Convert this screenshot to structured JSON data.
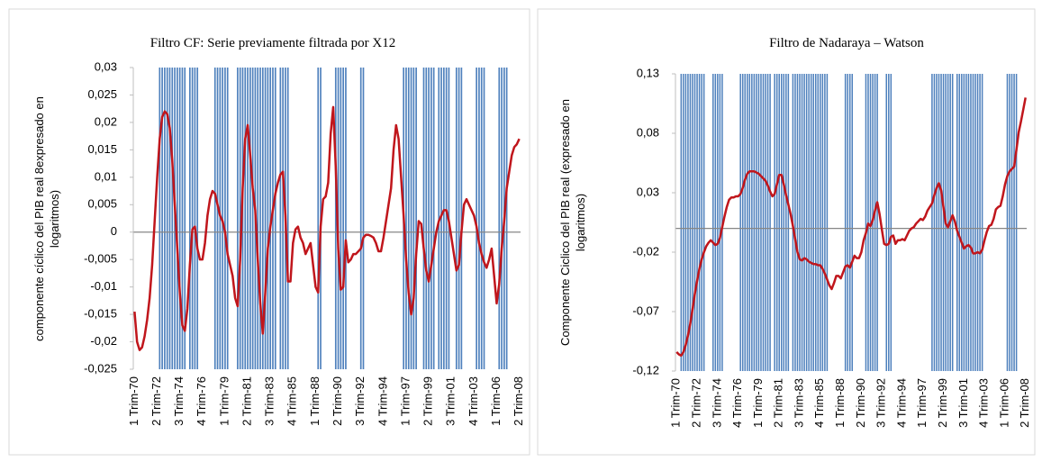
{
  "chart_data": [
    {
      "type": "line",
      "title": "Filtro CF: Serie previamente filtrada por X12",
      "y_label": "componente cíclico del PIB real 8expresado en logaritmos)",
      "categories": [
        "1 Trim-70",
        null,
        null,
        null,
        null,
        null,
        null,
        null,
        null,
        "2 Trim-72",
        null,
        null,
        null,
        null,
        null,
        null,
        null,
        null,
        "3 Trim-74",
        null,
        null,
        null,
        null,
        null,
        null,
        null,
        null,
        "4 Trim-76",
        null,
        null,
        null,
        null,
        null,
        null,
        null,
        null,
        "1 Trim-79",
        null,
        null,
        null,
        null,
        null,
        null,
        null,
        null,
        "2 Trim-81",
        null,
        null,
        null,
        null,
        null,
        null,
        null,
        null,
        "3 Trim-83",
        null,
        null,
        null,
        null,
        null,
        null,
        null,
        null,
        "4 Trim-85",
        null,
        null,
        null,
        null,
        null,
        null,
        null,
        null,
        "1 Trim-88",
        null,
        null,
        null,
        null,
        null,
        null,
        null,
        null,
        "2 Trim-90",
        null,
        null,
        null,
        null,
        null,
        null,
        null,
        null,
        "3 Trim-92",
        null,
        null,
        null,
        null,
        null,
        null,
        null,
        null,
        "4 Trim-94",
        null,
        null,
        null,
        null,
        null,
        null,
        null,
        null,
        "1 Trim-97",
        null,
        null,
        null,
        null,
        null,
        null,
        null,
        null,
        "2 Trim-99",
        null,
        null,
        null,
        null,
        null,
        null,
        null,
        null,
        "3 Trim-01",
        null,
        null,
        null,
        null,
        null,
        null,
        null,
        null,
        "4 Trim-03",
        null,
        null,
        null,
        null,
        null,
        null,
        null,
        null,
        "1 Trim-06",
        null,
        null,
        null,
        null,
        null,
        null,
        null,
        null,
        "2 Trim-08"
      ],
      "ylim": [
        -0.025,
        0.03
      ],
      "yticks": [
        {
          "value": 0.03,
          "label": "0,03"
        },
        {
          "value": 0.025,
          "label": "0,025"
        },
        {
          "value": 0.02,
          "label": "0,02"
        },
        {
          "value": 0.015,
          "label": "0,015"
        },
        {
          "value": 0.01,
          "label": "0,01"
        },
        {
          "value": 0.005,
          "label": "0,005"
        },
        0,
        {
          "value": -0.005,
          "label": "-0,005"
        },
        {
          "value": -0.01,
          "label": "-0,01"
        },
        {
          "value": -0.015,
          "label": "-0,015"
        },
        {
          "value": -0.02,
          "label": "-0,02"
        },
        {
          "value": -0.025,
          "label": "-0,025"
        }
      ],
      "y2lim": [
        0,
        1
      ],
      "series": [
        {
          "type": "bar",
          "axis": "y2",
          "color": "#4f81bd",
          "values": [
            null,
            null,
            null,
            null,
            null,
            null,
            null,
            null,
            null,
            null,
            1,
            1,
            1,
            1,
            1,
            1,
            1,
            1,
            1,
            1,
            1,
            null,
            1,
            1,
            1,
            1,
            null,
            null,
            null,
            null,
            null,
            null,
            1,
            1,
            1,
            1,
            1,
            1,
            null,
            null,
            null,
            1,
            1,
            1,
            1,
            1,
            1,
            1,
            1,
            1,
            1,
            1,
            1,
            1,
            1,
            1,
            1,
            null,
            1,
            1,
            1,
            1,
            null,
            null,
            null,
            null,
            null,
            null,
            null,
            null,
            null,
            null,
            null,
            1,
            1,
            null,
            null,
            null,
            null,
            null,
            1,
            1,
            1,
            1,
            1,
            null,
            null,
            null,
            null,
            null,
            1,
            1,
            null,
            null,
            null,
            null,
            null,
            null,
            null,
            null,
            null,
            null,
            null,
            null,
            null,
            null,
            null,
            1,
            1,
            1,
            1,
            1,
            1,
            null,
            null,
            1,
            1,
            1,
            1,
            1,
            null,
            1,
            1,
            1,
            1,
            1,
            null,
            null,
            1,
            1,
            1,
            null,
            null,
            null,
            null,
            null,
            1,
            1,
            1,
            1,
            null,
            null,
            null,
            null,
            null,
            1,
            1,
            1,
            1,
            null,
            null,
            null,
            null,
            null
          ]
        },
        {
          "type": "line",
          "color": "#c0161c",
          "values": [
            -0.0145,
            -0.02,
            -0.0215,
            -0.021,
            -0.019,
            -0.016,
            -0.012,
            -0.006,
            0.002,
            0.01,
            0.017,
            0.021,
            0.022,
            0.0215,
            0.019,
            0.013,
            0.005,
            -0.003,
            -0.011,
            -0.017,
            -0.018,
            -0.014,
            -0.006,
            0.0005,
            0.001,
            -0.003,
            -0.005,
            -0.005,
            -0.002,
            0.003,
            0.006,
            0.0075,
            0.007,
            0.005,
            0.003,
            0.002,
            0,
            -0.004,
            -0.006,
            -0.008,
            -0.012,
            -0.0135,
            -0.005,
            0.008,
            0.017,
            0.0195,
            0.014,
            0.008,
            0.004,
            -0.005,
            -0.013,
            -0.0185,
            -0.011,
            -0.003,
            0.001,
            0.004,
            0.007,
            0.009,
            0.0105,
            0.011,
            0.003,
            -0.009,
            -0.009,
            -0.002,
            0.0005,
            0.001,
            -0.001,
            -0.002,
            -0.004,
            -0.003,
            -0.002,
            -0.006,
            -0.01,
            -0.011,
            0.001,
            0.006,
            0.0065,
            0.009,
            0.018,
            0.0228,
            0.012,
            -0.003,
            -0.0105,
            -0.01,
            -0.0015,
            -0.0055,
            -0.005,
            -0.004,
            -0.004,
            -0.0035,
            -0.003,
            -0.001,
            -0.0005,
            -0.0005,
            -0.0007,
            -0.001,
            -0.002,
            -0.0035,
            -0.0035,
            -0.001,
            0.002,
            0.005,
            0.008,
            0.015,
            0.0195,
            0.017,
            0.01,
            0.003,
            -0.005,
            -0.011,
            -0.015,
            -0.012,
            -0.004,
            0.002,
            0.0015,
            -0.003,
            -0.007,
            -0.009,
            -0.006,
            -0.003,
            0,
            0.002,
            0.003,
            0.004,
            0.004,
            0.002,
            -0.001,
            -0.004,
            -0.007,
            -0.006,
            0,
            0.005,
            0.006,
            0.005,
            0.004,
            0.003,
            0.001,
            -0.002,
            -0.004,
            -0.0055,
            -0.0065,
            -0.005,
            -0.003,
            -0.008,
            -0.013,
            -0.0095,
            -0.003,
            0.002,
            0.008,
            0.011,
            0.014,
            0.0155,
            0.016,
            0.017
          ]
        }
      ]
    },
    {
      "type": "line",
      "title": "Filtro de Nadaraya – Watson",
      "y_label": "Componente Ciclico del PIB real (expresado en logaritmos)",
      "categories": [
        "1 Trim-70",
        null,
        null,
        null,
        null,
        null,
        null,
        null,
        null,
        "2 Trim-72",
        null,
        null,
        null,
        null,
        null,
        null,
        null,
        null,
        "3 Trim-74",
        null,
        null,
        null,
        null,
        null,
        null,
        null,
        null,
        "4 Trim-76",
        null,
        null,
        null,
        null,
        null,
        null,
        null,
        null,
        "1 Trim-79",
        null,
        null,
        null,
        null,
        null,
        null,
        null,
        null,
        "2 Trim-81",
        null,
        null,
        null,
        null,
        null,
        null,
        null,
        null,
        "3 Trim-83",
        null,
        null,
        null,
        null,
        null,
        null,
        null,
        null,
        "4 Trim-85",
        null,
        null,
        null,
        null,
        null,
        null,
        null,
        null,
        "1 Trim-88",
        null,
        null,
        null,
        null,
        null,
        null,
        null,
        null,
        "2 Trim-90",
        null,
        null,
        null,
        null,
        null,
        null,
        null,
        null,
        "3 Trim-92",
        null,
        null,
        null,
        null,
        null,
        null,
        null,
        null,
        "4 Trim-94",
        null,
        null,
        null,
        null,
        null,
        null,
        null,
        null,
        "1 Trim-97",
        null,
        null,
        null,
        null,
        null,
        null,
        null,
        null,
        "2 Trim-99",
        null,
        null,
        null,
        null,
        null,
        null,
        null,
        null,
        "3 Trim-01",
        null,
        null,
        null,
        null,
        null,
        null,
        null,
        null,
        "4 Trim-03",
        null,
        null,
        null,
        null,
        null,
        null,
        null,
        null,
        "1 Trim-06",
        null,
        null,
        null,
        null,
        null,
        null,
        null,
        null,
        "2 Trim-08"
      ],
      "ylim": [
        -0.12,
        0.13
      ],
      "yticks": [
        {
          "value": 0.13,
          "label": "0,13"
        },
        {
          "value": 0.08,
          "label": "0,08"
        },
        {
          "value": 0.03,
          "label": "0,03"
        },
        {
          "value": -0.02,
          "label": "-0,02"
        },
        {
          "value": -0.07,
          "label": "-0,07"
        },
        {
          "value": -0.12,
          "label": "-0,12"
        }
      ],
      "y2lim": [
        0,
        1
      ],
      "series": [
        {
          "type": "bar",
          "axis": "y2",
          "color": "#4f81bd",
          "values": [
            null,
            null,
            1,
            1,
            1,
            1,
            1,
            1,
            1,
            1,
            1,
            1,
            1,
            null,
            null,
            null,
            1,
            1,
            1,
            1,
            1,
            null,
            null,
            null,
            null,
            null,
            null,
            null,
            1,
            1,
            1,
            1,
            1,
            1,
            1,
            1,
            1,
            1,
            1,
            1,
            1,
            1,
            null,
            1,
            1,
            1,
            1,
            1,
            1,
            1,
            null,
            1,
            1,
            1,
            1,
            1,
            1,
            1,
            1,
            1,
            1,
            1,
            1,
            1,
            1,
            1,
            1,
            null,
            null,
            null,
            null,
            null,
            null,
            null,
            1,
            1,
            1,
            1,
            null,
            null,
            null,
            null,
            null,
            1,
            1,
            1,
            1,
            1,
            1,
            null,
            null,
            null,
            1,
            1,
            1,
            null,
            null,
            null,
            null,
            null,
            null,
            null,
            null,
            null,
            null,
            null,
            null,
            null,
            null,
            null,
            null,
            null,
            1,
            1,
            1,
            1,
            1,
            1,
            1,
            1,
            1,
            1,
            null,
            1,
            1,
            1,
            1,
            1,
            1,
            1,
            1,
            1,
            1,
            1,
            1,
            null,
            null,
            null,
            null,
            null,
            null,
            null,
            null,
            null,
            null,
            1,
            1,
            1,
            1,
            1,
            null,
            null,
            null,
            null
          ]
        },
        {
          "type": "line",
          "color": "#c0161c",
          "values": [
            -0.104,
            -0.106,
            -0.107,
            -0.104,
            -0.098,
            -0.09,
            -0.08,
            -0.068,
            -0.055,
            -0.044,
            -0.034,
            -0.026,
            -0.02,
            -0.015,
            -0.012,
            -0.01,
            -0.012,
            -0.014,
            -0.013,
            -0.008,
            0.001,
            0.01,
            0.018,
            0.024,
            0.026,
            0.026,
            0.027,
            0.027,
            0.029,
            0.034,
            0.041,
            0.046,
            0.048,
            0.048,
            0.048,
            0.047,
            0.046,
            0.044,
            0.042,
            0.04,
            0.036,
            0.031,
            0.027,
            0.029,
            0.037,
            0.045,
            0.045,
            0.037,
            0.028,
            0.02,
            0.012,
            0.002,
            -0.009,
            -0.02,
            -0.026,
            -0.027,
            -0.025,
            -0.026,
            -0.028,
            -0.029,
            -0.03,
            -0.03,
            -0.031,
            -0.031,
            -0.034,
            -0.038,
            -0.043,
            -0.048,
            -0.051,
            -0.046,
            -0.04,
            -0.04,
            -0.042,
            -0.037,
            -0.032,
            -0.031,
            -0.033,
            -0.028,
            -0.023,
            -0.025,
            -0.025,
            -0.02,
            -0.01,
            -0.004,
            0.004,
            0.002,
            0.007,
            0.015,
            0.022,
            0.012,
            -0.001,
            -0.013,
            -0.014,
            -0.013,
            -0.007,
            -0.006,
            -0.013,
            -0.01,
            -0.01,
            -0.009,
            -0.01,
            -0.006,
            -0.002,
            0,
            0.001,
            0.004,
            0.006,
            0.008,
            0.007,
            0.01,
            0.015,
            0.018,
            0.021,
            0.028,
            0.034,
            0.038,
            0.032,
            0.018,
            0.004,
            0.001,
            0.006,
            0.011,
            0.006,
            -0.002,
            -0.007,
            -0.012,
            -0.017,
            -0.015,
            -0.014,
            -0.016,
            -0.021,
            -0.021,
            -0.02,
            -0.021,
            -0.018,
            -0.01,
            -0.003,
            0.002,
            0.003,
            0.008,
            0.016,
            0.018,
            0.019,
            0.027,
            0.037,
            0.044,
            0.048,
            0.05,
            0.052,
            0.066,
            0.081,
            0.09,
            0.1,
            0.11
          ]
        }
      ]
    }
  ]
}
